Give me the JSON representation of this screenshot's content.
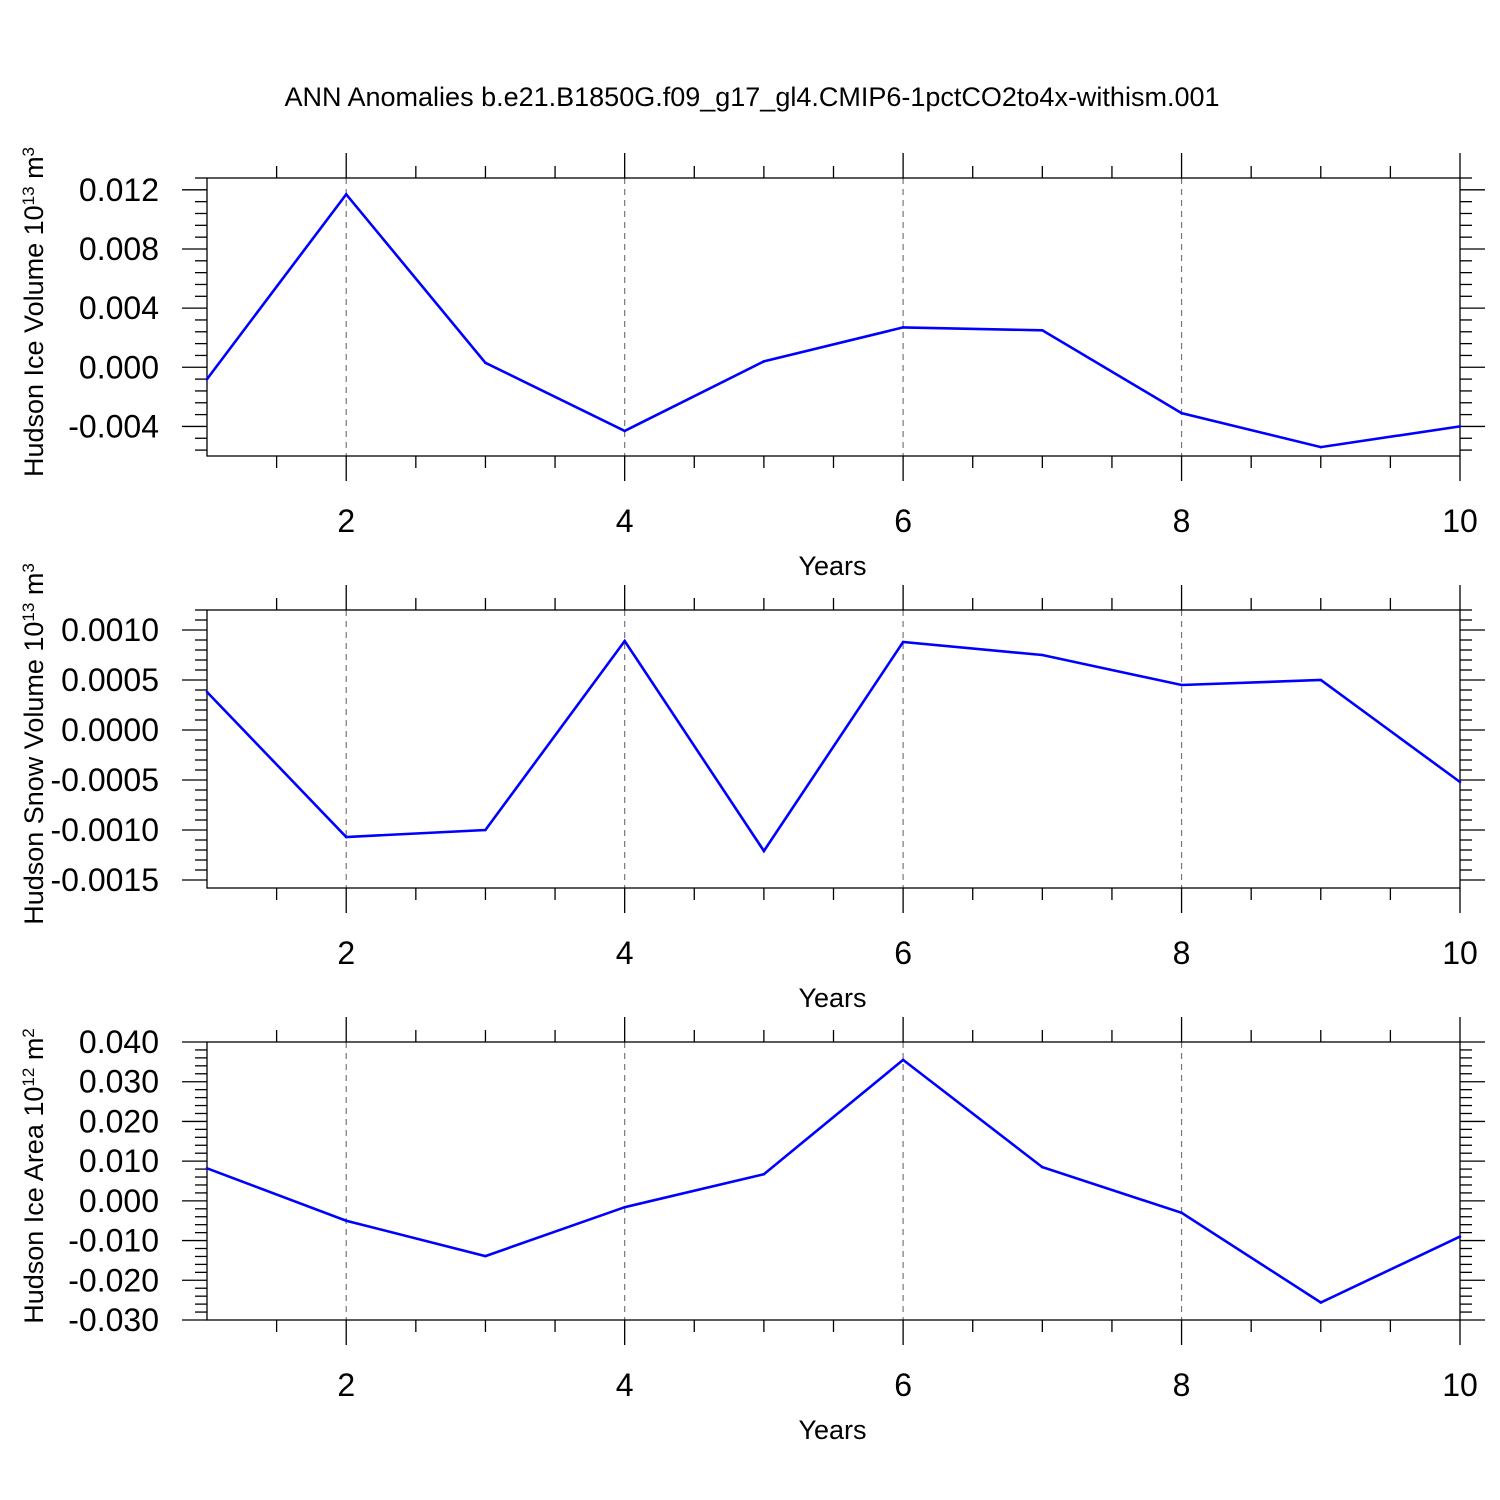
{
  "figure": {
    "title": "ANN Anomalies b.e21.B1850G.f09_g17_gl4.CMIP6-1pctCO2to4x-withism.001"
  },
  "colors": {
    "series": "#0000ff",
    "grid": "#777777",
    "axis": "#000000"
  },
  "chart_data": [
    {
      "type": "line",
      "title": "",
      "xlabel": "Years",
      "ylabel": "Hudson Ice Volume 10",
      "ylabel_exponent": "13",
      "ylabel_unit": " m",
      "ylabel_unit_exponent": "3",
      "xlim": [
        1,
        10
      ],
      "ylim": [
        -0.006,
        0.0128
      ],
      "x_ticks": [
        2,
        4,
        6,
        8,
        10
      ],
      "y_ticks": [
        -0.004,
        0.0,
        0.004,
        0.008,
        0.012
      ],
      "y_tick_labels": [
        "-0.004",
        "0.000",
        "0.004",
        "0.008",
        "0.012"
      ],
      "x_minor_step": 0.5,
      "y_minor_step": 0.0008,
      "grid": "vertical dashed at major x ticks",
      "series": [
        {
          "x": [
            1,
            2,
            3,
            4,
            5,
            6,
            7,
            8,
            9,
            10
          ],
          "values": [
            -0.0008,
            0.0117,
            0.0003,
            -0.0043,
            0.0004,
            0.0027,
            0.0025,
            -0.0031,
            -0.0054,
            -0.004
          ]
        }
      ]
    },
    {
      "type": "line",
      "title": "",
      "xlabel": "Years",
      "ylabel": "Hudson Snow Volume 10",
      "ylabel_exponent": "13",
      "ylabel_unit": " m",
      "ylabel_unit_exponent": "3",
      "xlim": [
        1,
        10
      ],
      "ylim": [
        -0.00158,
        0.0012
      ],
      "x_ticks": [
        2,
        4,
        6,
        8,
        10
      ],
      "y_ticks": [
        -0.0015,
        -0.001,
        -0.0005,
        0.0,
        0.0005,
        0.001
      ],
      "y_tick_labels": [
        "-0.0015",
        "-0.0010",
        "-0.0005",
        "0.0000",
        "0.0005",
        "0.0010"
      ],
      "x_minor_step": 0.5,
      "y_minor_step": 0.0001,
      "grid": "vertical dashed at major x ticks",
      "series": [
        {
          "x": [
            1,
            2,
            3,
            4,
            5,
            6,
            7,
            8,
            9,
            10
          ],
          "values": [
            0.00038,
            -0.00107,
            -0.001,
            0.00089,
            -0.00121,
            0.00088,
            0.00075,
            0.00045,
            0.0005,
            -0.00052
          ]
        }
      ]
    },
    {
      "type": "line",
      "title": "",
      "xlabel": "Years",
      "ylabel": "Hudson Ice Area 10",
      "ylabel_exponent": "12",
      "ylabel_unit": " m",
      "ylabel_unit_exponent": "2",
      "xlim": [
        1,
        10
      ],
      "ylim": [
        -0.03,
        0.04
      ],
      "x_ticks": [
        2,
        4,
        6,
        8,
        10
      ],
      "y_ticks": [
        -0.03,
        -0.02,
        -0.01,
        0.0,
        0.01,
        0.02,
        0.03,
        0.04
      ],
      "y_tick_labels": [
        "-0.030",
        "-0.020",
        "-0.010",
        "0.000",
        "0.010",
        "0.020",
        "0.030",
        "0.040"
      ],
      "x_minor_step": 0.5,
      "y_minor_step": 0.002,
      "grid": "vertical dashed at major x ticks",
      "series": [
        {
          "x": [
            1,
            2,
            3,
            4,
            5,
            6,
            7,
            8,
            9,
            10
          ],
          "values": [
            0.0082,
            -0.005,
            -0.0139,
            -0.0016,
            0.0067,
            0.0355,
            0.0085,
            -0.003,
            -0.0256,
            -0.009
          ]
        }
      ]
    }
  ]
}
